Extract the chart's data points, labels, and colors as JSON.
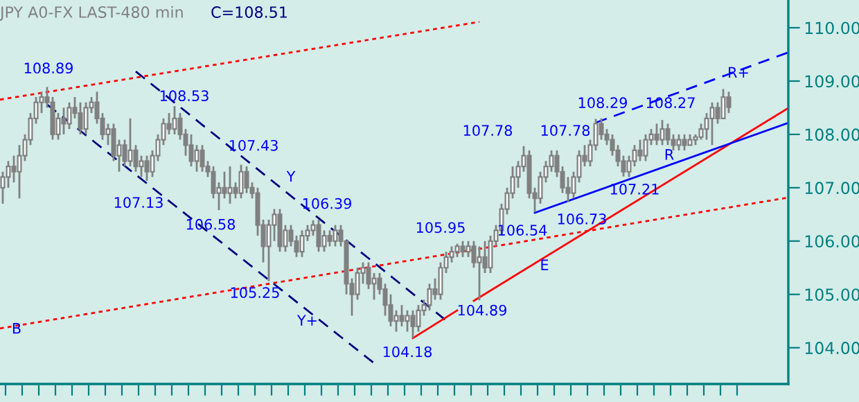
{
  "chart_data": {
    "type": "candlestick",
    "title": "JPY A0-FX LAST-480 min",
    "subtitle": "C=108.51",
    "color": "#808080",
    "categories": [
      null,
      null,
      null,
      null,
      null,
      null,
      null,
      null,
      null,
      null,
      null,
      null,
      null,
      null,
      null,
      null,
      null,
      null,
      null,
      null,
      null,
      null,
      null,
      null,
      null,
      null,
      null,
      null,
      null,
      null,
      null,
      null,
      null,
      null,
      null,
      null,
      null,
      null,
      null,
      null,
      null,
      null,
      null,
      null,
      null,
      null,
      null,
      null,
      null,
      null,
      null,
      null,
      null,
      null,
      null,
      null,
      null,
      null,
      null,
      null,
      null,
      null,
      null,
      null,
      null,
      null,
      null,
      null,
      null,
      null,
      null,
      null,
      null,
      null,
      null,
      null,
      null,
      null,
      null,
      null,
      null,
      null,
      null,
      null,
      null,
      null,
      null,
      null,
      null,
      null,
      null,
      null,
      null,
      null,
      null,
      null,
      null,
      null,
      null,
      null,
      null,
      null,
      null,
      null,
      null,
      null,
      null,
      null,
      null,
      null,
      null,
      null,
      null,
      null,
      null,
      null,
      null,
      null,
      null,
      null,
      null,
      null,
      null,
      null,
      null,
      null,
      null,
      null,
      null,
      null,
      null,
      null
    ],
    "ohlc": [
      [
        107.0,
        107.3,
        106.7,
        107.2
      ],
      [
        107.2,
        107.5,
        107.0,
        107.4
      ],
      [
        107.4,
        107.6,
        107.1,
        107.3
      ],
      [
        107.3,
        107.8,
        106.8,
        107.6
      ],
      [
        107.6,
        108.0,
        107.5,
        107.9
      ],
      [
        107.9,
        108.4,
        107.8,
        108.3
      ],
      [
        108.3,
        108.7,
        108.2,
        108.6
      ],
      [
        108.6,
        108.8,
        108.4,
        108.7
      ],
      [
        108.7,
        108.89,
        108.5,
        108.6
      ],
      [
        108.6,
        108.7,
        107.9,
        108.0
      ],
      [
        108.0,
        108.4,
        107.9,
        108.3
      ],
      [
        108.3,
        108.5,
        108.0,
        108.2
      ],
      [
        108.2,
        108.6,
        108.1,
        108.5
      ],
      [
        108.5,
        108.7,
        108.3,
        108.4
      ],
      [
        108.4,
        108.6,
        108.0,
        108.1
      ],
      [
        108.1,
        108.6,
        108.0,
        108.5
      ],
      [
        108.5,
        108.7,
        108.4,
        108.6
      ],
      [
        108.6,
        108.8,
        108.2,
        108.3
      ],
      [
        108.3,
        108.4,
        107.9,
        108.0
      ],
      [
        108.0,
        108.2,
        107.8,
        108.1
      ],
      [
        108.1,
        108.2,
        107.5,
        107.6
      ],
      [
        107.6,
        107.9,
        107.3,
        107.8
      ],
      [
        107.8,
        107.9,
        107.4,
        107.5
      ],
      [
        107.5,
        108.3,
        107.4,
        107.7
      ],
      [
        107.7,
        107.8,
        107.3,
        107.4
      ],
      [
        107.4,
        107.6,
        107.2,
        107.5
      ],
      [
        107.5,
        107.6,
        107.13,
        107.3
      ],
      [
        107.3,
        107.7,
        107.2,
        107.6
      ],
      [
        107.6,
        108.0,
        107.5,
        107.9
      ],
      [
        107.9,
        108.3,
        107.8,
        108.2
      ],
      [
        108.2,
        108.4,
        108.0,
        108.1
      ],
      [
        108.1,
        108.53,
        108.0,
        108.3
      ],
      [
        108.3,
        108.4,
        107.9,
        108.0
      ],
      [
        108.0,
        108.1,
        107.6,
        107.8
      ],
      [
        107.8,
        108.0,
        107.4,
        107.5
      ],
      [
        107.5,
        107.8,
        107.3,
        107.7
      ],
      [
        107.7,
        107.8,
        107.3,
        107.4
      ],
      [
        107.4,
        107.5,
        107.2,
        107.3
      ],
      [
        107.3,
        107.4,
        106.8,
        106.9
      ],
      [
        106.9,
        107.1,
        106.58,
        107.0
      ],
      [
        107.0,
        107.3,
        106.8,
        106.9
      ],
      [
        106.9,
        107.4,
        106.7,
        107.0
      ],
      [
        107.0,
        107.1,
        106.8,
        106.9
      ],
      [
        106.9,
        107.43,
        106.8,
        107.3
      ],
      [
        107.3,
        107.4,
        106.9,
        107.0
      ],
      [
        107.0,
        107.1,
        106.8,
        106.9
      ],
      [
        106.9,
        107.0,
        106.1,
        106.3
      ],
      [
        106.3,
        106.4,
        105.6,
        105.9
      ],
      [
        105.9,
        106.4,
        105.25,
        106.3
      ],
      [
        106.3,
        106.6,
        106.0,
        106.5
      ],
      [
        106.5,
        106.6,
        105.8,
        105.9
      ],
      [
        105.9,
        106.3,
        105.8,
        106.2
      ],
      [
        106.2,
        106.3,
        105.9,
        106.0
      ],
      [
        106.0,
        106.1,
        105.7,
        105.8
      ],
      [
        105.8,
        106.2,
        105.7,
        106.1
      ],
      [
        106.1,
        106.3,
        106.0,
        106.2
      ],
      [
        106.2,
        106.39,
        106.1,
        106.3
      ],
      [
        106.3,
        106.4,
        105.8,
        105.9
      ],
      [
        105.9,
        106.2,
        105.8,
        106.1
      ],
      [
        106.1,
        106.2,
        105.9,
        106.0
      ],
      [
        106.0,
        106.3,
        105.9,
        106.2
      ],
      [
        106.2,
        106.3,
        105.9,
        106.0
      ],
      [
        106.0,
        106.0,
        105.0,
        105.2
      ],
      [
        105.2,
        105.3,
        104.6,
        105.0
      ],
      [
        105.0,
        105.5,
        104.9,
        105.4
      ],
      [
        105.4,
        105.6,
        105.2,
        105.5
      ],
      [
        105.5,
        105.6,
        105.1,
        105.2
      ],
      [
        105.2,
        105.4,
        104.9,
        105.3
      ],
      [
        105.3,
        105.4,
        105.0,
        105.1
      ],
      [
        105.1,
        105.2,
        104.6,
        104.8
      ],
      [
        104.8,
        105.0,
        104.4,
        104.5
      ],
      [
        104.5,
        104.7,
        104.3,
        104.6
      ],
      [
        104.6,
        104.8,
        104.4,
        104.5
      ],
      [
        104.5,
        104.7,
        104.3,
        104.6
      ],
      [
        104.6,
        104.7,
        104.18,
        104.4
      ],
      [
        104.4,
        104.8,
        104.3,
        104.7
      ],
      [
        104.7,
        104.9,
        104.6,
        104.8
      ],
      [
        104.8,
        105.2,
        104.7,
        105.1
      ],
      [
        105.1,
        105.3,
        104.9,
        105.0
      ],
      [
        105.0,
        105.6,
        104.9,
        105.5
      ],
      [
        105.5,
        105.8,
        105.4,
        105.7
      ],
      [
        105.7,
        105.9,
        105.6,
        105.8
      ],
      [
        105.8,
        105.95,
        105.7,
        105.9
      ],
      [
        105.9,
        106.0,
        105.7,
        105.8
      ],
      [
        105.8,
        106.0,
        105.7,
        105.9
      ],
      [
        105.9,
        106.0,
        105.5,
        105.6
      ],
      [
        105.6,
        105.9,
        104.89,
        105.7
      ],
      [
        105.7,
        106.0,
        105.4,
        105.5
      ],
      [
        105.5,
        106.1,
        105.4,
        106.0
      ],
      [
        106.0,
        106.3,
        105.9,
        106.2
      ],
      [
        106.2,
        106.7,
        106.1,
        106.6
      ],
      [
        106.6,
        107.0,
        106.5,
        106.9
      ],
      [
        106.9,
        107.4,
        106.8,
        107.2
      ],
      [
        107.2,
        107.5,
        107.0,
        107.4
      ],
      [
        107.4,
        107.78,
        107.3,
        107.6
      ],
      [
        107.6,
        107.7,
        106.8,
        106.9
      ],
      [
        106.9,
        107.0,
        106.54,
        106.8
      ],
      [
        106.8,
        107.3,
        106.7,
        107.2
      ],
      [
        107.2,
        107.5,
        107.1,
        107.4
      ],
      [
        107.4,
        107.7,
        107.3,
        107.6
      ],
      [
        107.6,
        107.7,
        107.2,
        107.3
      ],
      [
        107.3,
        107.4,
        106.9,
        107.0
      ],
      [
        107.0,
        107.2,
        106.73,
        106.9
      ],
      [
        106.9,
        107.3,
        106.8,
        107.2
      ],
      [
        107.2,
        107.7,
        107.1,
        107.6
      ],
      [
        107.6,
        107.8,
        107.4,
        107.5
      ],
      [
        107.5,
        107.9,
        107.4,
        107.8
      ],
      [
        107.8,
        108.29,
        107.7,
        108.2
      ],
      [
        108.2,
        108.3,
        107.9,
        108.0
      ],
      [
        108.0,
        108.1,
        107.8,
        107.9
      ],
      [
        107.9,
        108.0,
        107.6,
        107.7
      ],
      [
        107.7,
        107.8,
        107.4,
        107.5
      ],
      [
        107.5,
        107.6,
        107.21,
        107.3
      ],
      [
        107.3,
        107.6,
        107.2,
        107.5
      ],
      [
        107.5,
        107.8,
        107.4,
        107.7
      ],
      [
        107.7,
        107.9,
        107.5,
        107.6
      ],
      [
        107.6,
        108.0,
        107.5,
        107.9
      ],
      [
        107.9,
        108.1,
        107.8,
        108.0
      ],
      [
        108.0,
        108.2,
        107.8,
        107.9
      ],
      [
        107.9,
        108.27,
        107.8,
        108.1
      ],
      [
        108.1,
        108.2,
        107.8,
        107.9
      ],
      [
        107.9,
        108.0,
        107.7,
        107.8
      ],
      [
        107.8,
        108.0,
        107.7,
        107.9
      ],
      [
        107.9,
        108.0,
        107.7,
        107.8
      ],
      [
        107.8,
        108.0,
        107.8,
        107.9
      ],
      [
        107.9,
        108.0,
        107.8,
        107.95
      ],
      [
        107.95,
        108.2,
        107.9,
        108.1
      ],
      [
        108.1,
        108.4,
        107.9,
        108.3
      ],
      [
        108.3,
        108.6,
        107.8,
        108.5
      ],
      [
        108.5,
        108.6,
        108.2,
        108.3
      ],
      [
        108.3,
        108.85,
        108.3,
        108.7
      ],
      [
        108.7,
        108.8,
        108.4,
        108.51
      ]
    ],
    "series": [
      {
        "type": "line",
        "color": "#ff0000",
        "line_style": "dotted",
        "values": [
          108.66,
          null,
          null,
          null,
          null,
          null,
          null,
          null,
          null,
          null,
          null,
          null,
          null,
          null,
          null,
          null,
          null,
          null,
          null,
          null,
          null,
          null,
          null,
          null,
          null,
          null,
          null,
          null,
          null,
          null,
          null,
          null,
          null,
          null,
          null,
          null,
          null,
          null,
          null,
          null,
          null,
          null,
          null,
          null,
          null,
          null,
          null,
          null,
          null,
          null,
          null,
          null,
          null,
          null,
          null,
          null,
          null,
          null,
          null,
          null,
          null,
          null,
          null,
          null,
          null,
          null,
          null,
          null,
          null,
          null,
          null,
          null,
          null,
          null,
          null,
          null,
          null,
          null,
          null,
          null,
          null,
          null,
          null,
          null,
          null,
          null,
          110.11,
          null,
          null,
          null,
          null,
          null,
          null,
          null,
          null,
          null,
          null,
          null,
          null,
          null,
          null,
          null,
          null,
          null,
          null,
          null,
          null,
          null,
          null,
          null,
          null,
          null,
          null,
          null,
          null,
          null,
          null,
          null,
          null,
          null,
          null,
          null,
          null,
          null,
          null,
          null,
          null,
          null,
          null,
          null,
          null,
          null
        ]
      },
      {
        "type": "line",
        "color": "#ff0000",
        "line_style": "dotted",
        "values": [
          104.37,
          null,
          null,
          null,
          null,
          null,
          null,
          null,
          null,
          null,
          null,
          null,
          null,
          null,
          null,
          null,
          null,
          null,
          null,
          null,
          null,
          null,
          null,
          null,
          null,
          null,
          null,
          null,
          null,
          null,
          null,
          null,
          null,
          null,
          null,
          null,
          null,
          null,
          null,
          null,
          null,
          null,
          null,
          null,
          null,
          null,
          null,
          null,
          null,
          null,
          null,
          null,
          null,
          null,
          null,
          null,
          null,
          null,
          null,
          null,
          null,
          null,
          null,
          null,
          null,
          null,
          null,
          null,
          null,
          null,
          null,
          null,
          null,
          null,
          null,
          null,
          null,
          null,
          null,
          null,
          null,
          null,
          null,
          null,
          null,
          null,
          null,
          null,
          null,
          null,
          null,
          null,
          null,
          null,
          null,
          null,
          null,
          null,
          null,
          null,
          null,
          null,
          null,
          null,
          null,
          null,
          null,
          null,
          null,
          null,
          null,
          null,
          null,
          null,
          null,
          null,
          null,
          null,
          null,
          null,
          null,
          null,
          null,
          null,
          null,
          null,
          null,
          null,
          null,
          null,
          null,
          106.63
        ]
      },
      {
        "type": "line",
        "color": "#000080",
        "line_style": "dashed",
        "values": [
          null,
          null,
          null,
          null,
          null,
          null,
          null,
          null,
          null,
          null,
          null,
          null,
          null,
          null,
          null,
          null,
          null,
          null,
          null,
          null,
          null,
          null,
          null,
          null,
          109.18,
          null,
          null,
          null,
          null,
          null,
          null,
          null,
          null,
          null,
          null,
          null,
          null,
          null,
          null,
          null,
          null,
          null,
          null,
          null,
          null,
          null,
          null,
          null,
          null,
          null,
          null,
          null,
          null,
          null,
          null,
          null,
          null,
          null,
          null,
          null,
          null,
          null,
          null,
          null,
          null,
          null,
          null,
          null,
          null,
          null,
          null,
          null,
          null,
          null,
          null,
          null,
          null,
          null,
          null,
          null,
          104.51,
          null,
          null,
          null,
          null,
          null,
          null,
          null,
          null,
          null,
          null,
          null,
          null,
          null,
          null,
          null,
          null,
          null,
          null,
          null,
          null,
          null,
          null,
          null,
          null,
          null,
          null,
          null,
          null,
          null,
          null,
          null,
          null,
          null,
          null,
          null,
          null,
          null,
          null,
          null,
          null,
          null,
          null,
          null,
          null,
          null,
          null,
          null,
          null,
          null,
          null,
          null
        ]
      },
      {
        "type": "line",
        "color": "#000080",
        "line_style": "dashed",
        "values": [
          null,
          null,
          null,
          null,
          null,
          null,
          null,
          null,
          108.56,
          null,
          null,
          null,
          null,
          null,
          null,
          null,
          null,
          null,
          null,
          null,
          null,
          null,
          null,
          null,
          null,
          null,
          null,
          null,
          null,
          null,
          null,
          null,
          null,
          null,
          null,
          null,
          null,
          null,
          null,
          null,
          null,
          null,
          null,
          null,
          null,
          null,
          null,
          null,
          null,
          null,
          null,
          null,
          null,
          null,
          null,
          null,
          null,
          null,
          null,
          null,
          null,
          null,
          null,
          null,
          null,
          null,
          null,
          103.71,
          null,
          null,
          null,
          null,
          null,
          null,
          null,
          null,
          null,
          null,
          null,
          null,
          null,
          null,
          null,
          null,
          null,
          null,
          null,
          null,
          null,
          null,
          null,
          null,
          null,
          null,
          null,
          null,
          null,
          null,
          null,
          null,
          null,
          null,
          null,
          null,
          null,
          null,
          null,
          null,
          null,
          null,
          null,
          null,
          null,
          null,
          null,
          null,
          null,
          null,
          null,
          null,
          null,
          null,
          null,
          null,
          null,
          null,
          null,
          null,
          null,
          null,
          null,
          null
        ]
      },
      {
        "type": "line",
        "color": "#ff0000",
        "line_style": "solid",
        "values": [
          null,
          null,
          null,
          null,
          null,
          null,
          null,
          null,
          null,
          null,
          null,
          null,
          null,
          null,
          null,
          null,
          null,
          null,
          null,
          null,
          null,
          null,
          null,
          null,
          null,
          null,
          null,
          null,
          null,
          null,
          null,
          null,
          null,
          null,
          null,
          null,
          null,
          null,
          null,
          null,
          null,
          null,
          null,
          null,
          null,
          null,
          null,
          null,
          null,
          null,
          null,
          null,
          null,
          null,
          null,
          null,
          null,
          null,
          null,
          null,
          null,
          null,
          null,
          null,
          null,
          null,
          null,
          null,
          null,
          null,
          null,
          null,
          null,
          null,
          104.18,
          null,
          null,
          null,
          null,
          null,
          null,
          null,
          104.7,
          null,
          null,
          null,
          null,
          null,
          null,
          null,
          null,
          null,
          null,
          null,
          null,
          null,
          null,
          null,
          null,
          null,
          null,
          null,
          null,
          null,
          null,
          null,
          null,
          null,
          null,
          null,
          null,
          null,
          null,
          null,
          null,
          null,
          null,
          null,
          null,
          null,
          null,
          null,
          null,
          null,
          null,
          null,
          null,
          null,
          null,
          null,
          null,
          null
        ]
      },
      {
        "type": "line",
        "color": "#ff0000",
        "line_style": "solid",
        "values": [
          null,
          null,
          null,
          null,
          null,
          null,
          null,
          null,
          null,
          null,
          null,
          null,
          null,
          null,
          null,
          null,
          null,
          null,
          null,
          null,
          null,
          null,
          null,
          null,
          null,
          null,
          null,
          null,
          null,
          null,
          null,
          null,
          null,
          null,
          null,
          null,
          null,
          null,
          null,
          null,
          null,
          null,
          null,
          null,
          null,
          null,
          null,
          null,
          null,
          null,
          null,
          null,
          null,
          null,
          null,
          null,
          null,
          null,
          null,
          null,
          null,
          null,
          null,
          null,
          null,
          null,
          null,
          null,
          null,
          null,
          null,
          null,
          null,
          null,
          null,
          null,
          null,
          null,
          null,
          null,
          null,
          null,
          null,
          null,
          null,
          104.88,
          null,
          null,
          null,
          null,
          null,
          null,
          null,
          null,
          null,
          null,
          null,
          null,
          null,
          null,
          null,
          null,
          null,
          null,
          null,
          null,
          null,
          null,
          null,
          null,
          null,
          null,
          null,
          null,
          null,
          null,
          null,
          null,
          null,
          null,
          null,
          null,
          null,
          null,
          null,
          null,
          null,
          null,
          null,
          null,
          null,
          107.81
        ]
      },
      {
        "type": "line",
        "color": "#0000ff",
        "line_style": "solid",
        "values": [
          null,
          null,
          null,
          null,
          null,
          null,
          null,
          null,
          null,
          null,
          null,
          null,
          null,
          null,
          null,
          null,
          null,
          null,
          null,
          null,
          null,
          null,
          null,
          null,
          null,
          null,
          null,
          null,
          null,
          null,
          null,
          null,
          null,
          null,
          null,
          null,
          null,
          null,
          null,
          null,
          null,
          null,
          null,
          null,
          null,
          null,
          null,
          null,
          null,
          null,
          null,
          null,
          null,
          null,
          null,
          null,
          null,
          null,
          null,
          null,
          null,
          null,
          null,
          null,
          null,
          null,
          null,
          null,
          null,
          null,
          null,
          null,
          null,
          null,
          null,
          null,
          null,
          null,
          null,
          null,
          null,
          null,
          null,
          null,
          null,
          null,
          null,
          null,
          null,
          null,
          null,
          null,
          null,
          null,
          null,
          null,
          106.53,
          null,
          null,
          null,
          null,
          null,
          null,
          null,
          null,
          null,
          null,
          null,
          null,
          null,
          null,
          null,
          null,
          null,
          null,
          null,
          null,
          null,
          null,
          null,
          null,
          null,
          null,
          null,
          null,
          null,
          null,
          null,
          null,
          null,
          null,
          107.82
        ]
      },
      {
        "type": "line",
        "color": "#0000ff",
        "line_style": "dashed",
        "values": [
          null,
          null,
          null,
          null,
          null,
          null,
          null,
          null,
          null,
          null,
          null,
          null,
          null,
          null,
          null,
          null,
          null,
          null,
          null,
          null,
          null,
          null,
          null,
          null,
          null,
          null,
          null,
          null,
          null,
          null,
          null,
          null,
          null,
          null,
          null,
          null,
          null,
          null,
          null,
          null,
          null,
          null,
          null,
          null,
          null,
          null,
          null,
          null,
          null,
          null,
          null,
          null,
          null,
          null,
          null,
          null,
          null,
          null,
          null,
          null,
          null,
          null,
          null,
          null,
          null,
          null,
          null,
          null,
          null,
          null,
          null,
          null,
          null,
          null,
          null,
          null,
          null,
          null,
          null,
          null,
          null,
          null,
          null,
          null,
          null,
          null,
          null,
          null,
          null,
          null,
          null,
          null,
          null,
          null,
          null,
          null,
          null,
          null,
          null,
          null,
          null,
          null,
          null,
          null,
          null,
          null,
          null,
          108.22,
          null,
          null,
          null,
          null,
          null,
          null,
          null,
          null,
          null,
          null,
          null,
          null,
          null,
          null,
          null,
          null,
          null,
          null,
          null,
          null,
          null,
          null,
          null,
          109.13
        ]
      }
    ],
    "annotations": [
      "108.89",
      "108.53",
      "107.13",
      "106.58",
      "107.43",
      "105.25",
      "106.39",
      "104.18",
      "105.95",
      "104.89",
      "107.78",
      "106.54",
      "107.78",
      "106.73",
      "108.29",
      "107.21",
      "108.27",
      "B",
      "Y",
      "Y+",
      "E",
      "R",
      "R+"
    ],
    "ylim": [
      103.32,
      110.52
    ],
    "yticks": [
      {
        "value": 104,
        "label": "104.00"
      },
      {
        "value": 105,
        "label": "105.00"
      },
      {
        "value": 106,
        "label": "106.00"
      },
      {
        "value": 107,
        "label": "107.00"
      },
      {
        "value": 108,
        "label": "108.00"
      },
      {
        "value": 109,
        "label": "109.00"
      },
      {
        "value": 110,
        "label": "110.00"
      }
    ],
    "tick_labels": "y",
    "grid": false,
    "legend": false
  }
}
